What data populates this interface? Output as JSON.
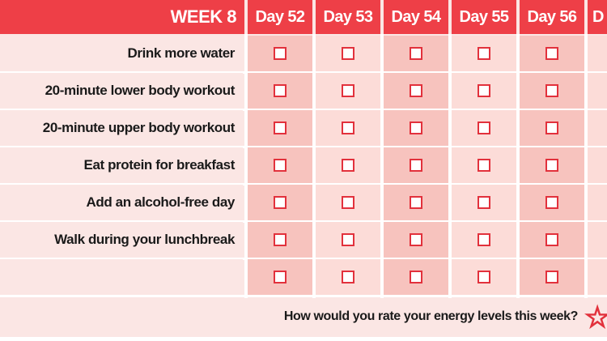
{
  "header": {
    "week_label": "WEEK 8",
    "days": [
      "Day 52",
      "Day 53",
      "Day 54",
      "Day 55",
      "Day 56",
      "D"
    ]
  },
  "tasks": [
    "Drink more water",
    "20-minute lower body workout",
    "20-minute upper body workout",
    "Eat protein for breakfast",
    "Add an alcohol-free day",
    "Walk during your lunchbreak",
    ""
  ],
  "footer": {
    "question": "How would you rate your energy levels this week?",
    "rating_icon": "star-icon"
  },
  "colors": {
    "header_bg": "#ee3f47",
    "cell_dark": "#f7c3be",
    "cell_light": "#fcdcd8",
    "checkbox_border": "#e2313c"
  }
}
